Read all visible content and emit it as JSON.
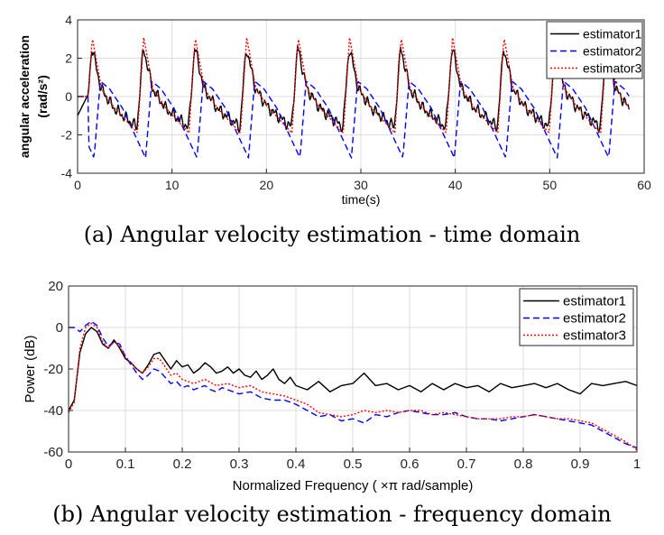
{
  "chart_data": [
    {
      "type": "line",
      "title": "",
      "xlabel": "time(s)",
      "ylabel": "angular acceleration",
      "ylabel_unit": "(rad/s²)",
      "xlim": [
        0,
        60
      ],
      "ylim": [
        -4,
        4
      ],
      "xticks": [
        0,
        10,
        20,
        30,
        40,
        50,
        60
      ],
      "yticks": [
        -4,
        -2,
        0,
        2,
        4
      ],
      "grid": true,
      "legend_position": "top-right",
      "series": [
        {
          "name": "estimator1",
          "color": "#000000",
          "style": "solid"
        },
        {
          "name": "estimator2",
          "color": "#0000ff",
          "style": "dashed"
        },
        {
          "name": "estimator3",
          "color": "#ff0000",
          "style": "dotted"
        }
      ],
      "caption": "(a) Angular velocity estimation - time domain"
    },
    {
      "type": "line",
      "title": "",
      "xlabel": "Normalized Frequency ( ×π rad/sample)",
      "ylabel": "Power (dB)",
      "xlim": [
        0,
        1
      ],
      "ylim": [
        -60,
        20
      ],
      "xticks": [
        0,
        0.1,
        0.2,
        0.3,
        0.4,
        0.5,
        0.6,
        0.7,
        0.8,
        0.9,
        1
      ],
      "yticks": [
        -60,
        -40,
        -20,
        0,
        20
      ],
      "grid": true,
      "legend_position": "top-right",
      "series": [
        {
          "name": "estimator1",
          "color": "#000000",
          "style": "solid",
          "x": [
            0,
            0.01,
            0.02,
            0.03,
            0.04,
            0.05,
            0.06,
            0.07,
            0.08,
            0.09,
            0.1,
            0.11,
            0.12,
            0.13,
            0.14,
            0.15,
            0.16,
            0.17,
            0.18,
            0.19,
            0.2,
            0.21,
            0.22,
            0.23,
            0.24,
            0.25,
            0.26,
            0.27,
            0.28,
            0.29,
            0.3,
            0.31,
            0.32,
            0.33,
            0.34,
            0.35,
            0.36,
            0.37,
            0.38,
            0.39,
            0.4,
            0.42,
            0.44,
            0.46,
            0.48,
            0.5,
            0.52,
            0.54,
            0.56,
            0.58,
            0.6,
            0.62,
            0.64,
            0.66,
            0.68,
            0.7,
            0.72,
            0.74,
            0.76,
            0.78,
            0.8,
            0.82,
            0.84,
            0.86,
            0.88,
            0.9,
            0.92,
            0.94,
            0.96,
            0.98,
            1
          ],
          "y": [
            -40,
            -35,
            -12,
            -3,
            0,
            -2,
            -8,
            -10,
            -6,
            -10,
            -15,
            -17,
            -20,
            -22,
            -18,
            -13,
            -12,
            -16,
            -20,
            -16,
            -19,
            -18,
            -22,
            -20,
            -17,
            -19,
            -22,
            -21,
            -19,
            -22,
            -20,
            -23,
            -24,
            -21,
            -25,
            -23,
            -20,
            -25,
            -27,
            -24,
            -28,
            -30,
            -26,
            -31,
            -28,
            -27,
            -22,
            -28,
            -27,
            -30,
            -28,
            -31,
            -27,
            -30,
            -27,
            -29,
            -28,
            -31,
            -27,
            -29,
            -28,
            -27,
            -29,
            -27,
            -30,
            -32,
            -27,
            -28,
            -27,
            -26,
            -28
          ]
        },
        {
          "name": "estimator2",
          "color": "#0000ff",
          "style": "dashed",
          "x": [
            0,
            0.01,
            0.02,
            0.03,
            0.04,
            0.05,
            0.06,
            0.07,
            0.08,
            0.09,
            0.1,
            0.11,
            0.12,
            0.13,
            0.14,
            0.15,
            0.16,
            0.17,
            0.18,
            0.19,
            0.2,
            0.21,
            0.22,
            0.23,
            0.24,
            0.25,
            0.26,
            0.27,
            0.28,
            0.3,
            0.32,
            0.34,
            0.36,
            0.38,
            0.4,
            0.42,
            0.44,
            0.46,
            0.48,
            0.5,
            0.52,
            0.54,
            0.56,
            0.58,
            0.6,
            0.62,
            0.64,
            0.66,
            0.68,
            0.7,
            0.72,
            0.74,
            0.76,
            0.78,
            0.8,
            0.82,
            0.84,
            0.86,
            0.88,
            0.9,
            0.92,
            0.94,
            0.96,
            0.98,
            1
          ],
          "y": [
            0,
            0,
            -2,
            1,
            3,
            1,
            -5,
            -9,
            -7,
            -8,
            -14,
            -18,
            -22,
            -25,
            -23,
            -20,
            -21,
            -24,
            -27,
            -26,
            -29,
            -28,
            -30,
            -29,
            -28,
            -30,
            -31,
            -29,
            -30,
            -32,
            -31,
            -34,
            -35,
            -35,
            -37,
            -40,
            -43,
            -42,
            -45,
            -44,
            -46,
            -42,
            -43,
            -41,
            -40,
            -41,
            -42,
            -42,
            -41,
            -43,
            -44,
            -44,
            -45,
            -44,
            -43,
            -42,
            -43,
            -44,
            -45,
            -46,
            -47,
            -50,
            -53,
            -56,
            -58
          ]
        },
        {
          "name": "estimator3",
          "color": "#ff0000",
          "style": "dotted",
          "x": [
            0,
            0.01,
            0.02,
            0.03,
            0.04,
            0.05,
            0.06,
            0.07,
            0.08,
            0.09,
            0.1,
            0.11,
            0.12,
            0.13,
            0.14,
            0.15,
            0.16,
            0.17,
            0.18,
            0.19,
            0.2,
            0.22,
            0.24,
            0.26,
            0.28,
            0.3,
            0.32,
            0.34,
            0.36,
            0.38,
            0.4,
            0.42,
            0.44,
            0.46,
            0.48,
            0.5,
            0.52,
            0.54,
            0.56,
            0.58,
            0.6,
            0.62,
            0.64,
            0.66,
            0.68,
            0.7,
            0.72,
            0.74,
            0.76,
            0.78,
            0.8,
            0.82,
            0.84,
            0.86,
            0.88,
            0.9,
            0.92,
            0.94,
            0.96,
            0.98,
            1
          ],
          "y": [
            -41,
            -36,
            -10,
            0,
            2,
            0,
            -7,
            -10,
            -7,
            -9,
            -14,
            -17,
            -20,
            -22,
            -19,
            -15,
            -15,
            -19,
            -23,
            -22,
            -25,
            -27,
            -25,
            -28,
            -27,
            -29,
            -28,
            -31,
            -32,
            -33,
            -35,
            -37,
            -41,
            -42,
            -43,
            -42,
            -40,
            -41,
            -40,
            -41,
            -40,
            -40,
            -42,
            -41,
            -42,
            -43,
            -44,
            -44,
            -44,
            -43,
            -43,
            -42,
            -43,
            -44,
            -44,
            -45,
            -46,
            -49,
            -52,
            -55,
            -59
          ]
        }
      ],
      "caption": "(b) Angular velocity estimation - frequency domain"
    }
  ]
}
